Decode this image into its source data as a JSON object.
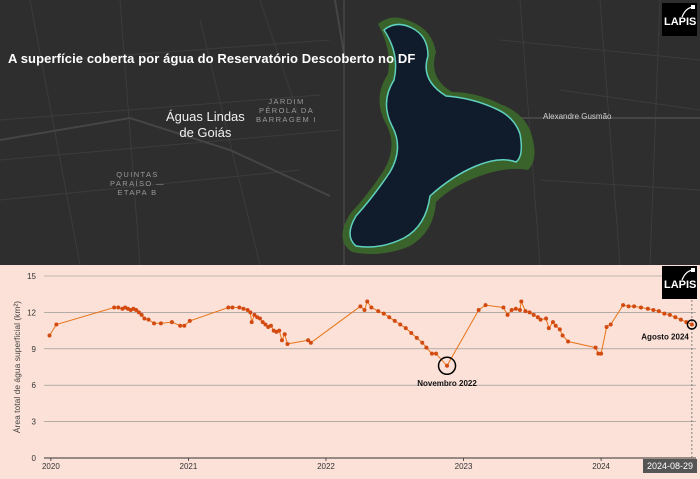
{
  "map": {
    "title": "A superfície coberta por água do Reservatório Descoberto no DF",
    "city_line1": "Águas Lindas",
    "city_line2": "de Goiás",
    "neighborhood_a_line1": "JARDIM",
    "neighborhood_a_line2": "PÉROLA DA",
    "neighborhood_a_line3": "BARRAGEM I",
    "neighborhood_b_line1": "QUINTAS",
    "neighborhood_b_line2": "PARAÍSO —",
    "neighborhood_b_line3": "ETAPA B",
    "road_label": "Alexandre Gusmão",
    "logo_text": "LAPIS",
    "colors": {
      "water": "#101c2b",
      "shoreline": "#5fd1c0",
      "vegetation": "#3c6b2a"
    }
  },
  "chart_logo": "LAPIS",
  "date_badge": "2024-08-29",
  "chart_data": {
    "type": "line",
    "ylabel": "Área total de água superficial (km²)",
    "xlabel": "",
    "ylim": [
      0,
      15
    ],
    "yticks": [
      "0",
      "3",
      "6",
      "9",
      "12",
      "15"
    ],
    "xticks": [
      "2020",
      "2021",
      "2022",
      "2023",
      "2024"
    ],
    "grid": "horizontal",
    "colors": {
      "line": "#e8751a",
      "marker": "#d34a10",
      "background": "#fbe1d7"
    },
    "annotations": [
      {
        "label": "Novembro 2022",
        "x": 2022.88,
        "y": 7.6
      },
      {
        "label": "Agosto 2024",
        "x": 2024.66,
        "y": 11.0
      }
    ],
    "series": [
      {
        "points": [
          [
            2019.99,
            10.1
          ],
          [
            2020.04,
            11.0
          ],
          [
            2020.46,
            12.4
          ],
          [
            2020.49,
            12.4
          ],
          [
            2020.52,
            12.3
          ],
          [
            2020.54,
            12.4
          ],
          [
            2020.56,
            12.3
          ],
          [
            2020.58,
            12.2
          ],
          [
            2020.6,
            12.3
          ],
          [
            2020.62,
            12.2
          ],
          [
            2020.64,
            12.0
          ],
          [
            2020.66,
            11.8
          ],
          [
            2020.68,
            11.5
          ],
          [
            2020.71,
            11.4
          ],
          [
            2020.75,
            11.1
          ],
          [
            2020.8,
            11.1
          ],
          [
            2020.88,
            11.2
          ],
          [
            2020.94,
            10.9
          ],
          [
            2020.97,
            10.9
          ],
          [
            2021.01,
            11.3
          ],
          [
            2021.29,
            12.4
          ],
          [
            2021.32,
            12.4
          ],
          [
            2021.37,
            12.4
          ],
          [
            2021.4,
            12.3
          ],
          [
            2021.43,
            12.2
          ],
          [
            2021.45,
            12.0
          ],
          [
            2021.46,
            11.2
          ],
          [
            2021.48,
            11.8
          ],
          [
            2021.5,
            11.6
          ],
          [
            2021.52,
            11.5
          ],
          [
            2021.54,
            11.2
          ],
          [
            2021.56,
            11.0
          ],
          [
            2021.58,
            10.8
          ],
          [
            2021.6,
            10.9
          ],
          [
            2021.62,
            10.5
          ],
          [
            2021.64,
            10.4
          ],
          [
            2021.66,
            10.5
          ],
          [
            2021.68,
            9.7
          ],
          [
            2021.7,
            10.2
          ],
          [
            2021.72,
            9.4
          ],
          [
            2021.87,
            9.7
          ],
          [
            2021.89,
            9.5
          ],
          [
            2022.25,
            12.5
          ],
          [
            2022.28,
            12.2
          ],
          [
            2022.3,
            12.9
          ],
          [
            2022.33,
            12.4
          ],
          [
            2022.38,
            12.1
          ],
          [
            2022.42,
            11.9
          ],
          [
            2022.46,
            11.6
          ],
          [
            2022.5,
            11.3
          ],
          [
            2022.54,
            11.0
          ],
          [
            2022.58,
            10.7
          ],
          [
            2022.62,
            10.3
          ],
          [
            2022.66,
            9.9
          ],
          [
            2022.7,
            9.5
          ],
          [
            2022.73,
            9.1
          ],
          [
            2022.77,
            8.6
          ],
          [
            2022.8,
            8.6
          ],
          [
            2022.88,
            7.6
          ],
          [
            2023.11,
            12.2
          ],
          [
            2023.16,
            12.6
          ],
          [
            2023.29,
            12.4
          ],
          [
            2023.32,
            11.8
          ],
          [
            2023.35,
            12.2
          ],
          [
            2023.38,
            12.3
          ],
          [
            2023.41,
            12.2
          ],
          [
            2023.42,
            12.9
          ],
          [
            2023.45,
            12.1
          ],
          [
            2023.48,
            12.0
          ],
          [
            2023.51,
            11.8
          ],
          [
            2023.54,
            11.6
          ],
          [
            2023.56,
            11.4
          ],
          [
            2023.6,
            11.5
          ],
          [
            2023.62,
            10.7
          ],
          [
            2023.65,
            11.2
          ],
          [
            2023.67,
            10.9
          ],
          [
            2023.7,
            10.6
          ],
          [
            2023.72,
            10.1
          ],
          [
            2023.76,
            9.6
          ],
          [
            2023.96,
            9.1
          ],
          [
            2023.98,
            8.6
          ],
          [
            2024.0,
            8.6
          ],
          [
            2024.04,
            10.8
          ],
          [
            2024.07,
            11.0
          ],
          [
            2024.16,
            12.6
          ],
          [
            2024.2,
            12.5
          ],
          [
            2024.24,
            12.5
          ],
          [
            2024.29,
            12.4
          ],
          [
            2024.34,
            12.3
          ],
          [
            2024.38,
            12.2
          ],
          [
            2024.42,
            12.1
          ],
          [
            2024.46,
            11.9
          ],
          [
            2024.5,
            11.8
          ],
          [
            2024.54,
            11.6
          ],
          [
            2024.58,
            11.4
          ],
          [
            2024.62,
            11.2
          ],
          [
            2024.66,
            11.0
          ]
        ]
      }
    ]
  }
}
